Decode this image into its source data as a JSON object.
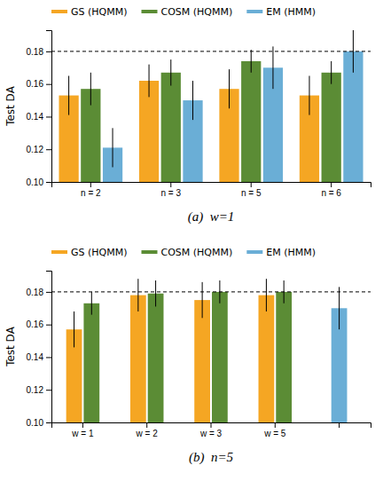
{
  "chart_data": [
    {
      "type": "bar",
      "title": "(a)  w=1",
      "ylabel": "Test DA",
      "categories": [
        "n = 2",
        "n = 3",
        "n = 5",
        "n = 6"
      ],
      "series": [
        {
          "name": "GS (HQMM)",
          "color": "#F5A623",
          "values": [
            0.153,
            0.162,
            0.157,
            0.153
          ],
          "errors": [
            0.012,
            0.01,
            0.012,
            0.012
          ]
        },
        {
          "name": "COSM (HQMM)",
          "color": "#5B8C35",
          "values": [
            0.157,
            0.167,
            0.174,
            0.167
          ],
          "errors": [
            0.01,
            0.008,
            0.007,
            0.007
          ]
        },
        {
          "name": "EM (HMM)",
          "color": "#6AAED6",
          "values": [
            0.121,
            0.15,
            0.17,
            0.18
          ],
          "errors": [
            0.012,
            0.012,
            0.013,
            0.013
          ]
        }
      ],
      "reference_y": 0.18,
      "ylim": [
        0.1,
        0.193
      ],
      "yticks": [
        {
          "value": 0.1,
          "label": "0.10"
        },
        0.12,
        0.14,
        0.16,
        0.18
      ],
      "grid": false,
      "legend": "top"
    },
    {
      "type": "bar",
      "title": "(b)  n=5",
      "ylabel": "Test DA",
      "categories": [
        "w = 1",
        "w = 2",
        "w = 3",
        "w = 5",
        null
      ],
      "series": [
        {
          "name": "GS (HQMM)",
          "color": "#F5A623",
          "values": [
            0.157,
            0.178,
            0.175,
            0.178,
            null
          ],
          "errors": [
            0.011,
            0.01,
            0.011,
            0.01,
            null
          ]
        },
        {
          "name": "COSM (HQMM)",
          "color": "#5B8C35",
          "values": [
            0.173,
            0.179,
            0.18,
            0.18,
            null
          ],
          "errors": [
            0.007,
            0.008,
            0.007,
            0.007,
            null
          ]
        },
        {
          "name": "EM (HMM)",
          "color": "#6AAED6",
          "values": [
            null,
            null,
            null,
            null,
            0.17
          ],
          "errors": [
            null,
            null,
            null,
            null,
            0.013
          ]
        }
      ],
      "reference_y": 0.18,
      "ylim": [
        0.1,
        0.193
      ],
      "yticks": [
        {
          "value": 0.1,
          "label": "0.10"
        },
        0.12,
        0.14,
        0.16,
        0.18
      ],
      "grid": false,
      "legend": "top"
    }
  ]
}
